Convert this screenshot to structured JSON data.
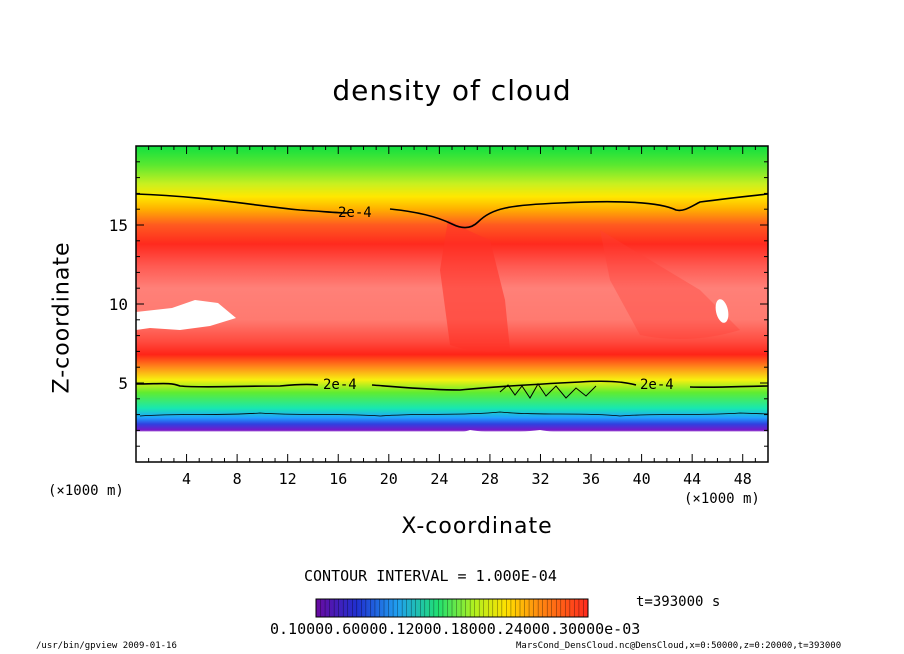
{
  "chart_data": {
    "type": "heatmap",
    "title": "density of cloud",
    "xlabel": "X-coordinate",
    "ylabel": "Z-coordinate",
    "x_unit": "(×1000 m)",
    "y_unit": "(×1000 m)",
    "xlim": [
      0,
      50
    ],
    "ylim": [
      0,
      20
    ],
    "x_ticks": [
      "4",
      "8",
      "12",
      "16",
      "20",
      "24",
      "28",
      "32",
      "36",
      "40",
      "44",
      "48"
    ],
    "y_ticks": [
      "5",
      "10",
      "15"
    ],
    "contour_level_label": "2e-4",
    "contour_interval": "CONTOUR INTERVAL = 1.000E-04",
    "time_label": "t=393000 s",
    "colorbar_label_text": "0.10000.60000.12000.18000.24000.30000e-03",
    "colors": {
      "high": "#ff3a2a",
      "peak": "#ff7a72",
      "mid": "#ffe000",
      "low": "#00e84a",
      "lowest": "#8a16c8"
    }
  },
  "footer": {
    "left": "/usr/bin/gpview  2009-01-16",
    "right": "MarsCond_DensCloud.nc@DensCloud,x=0:50000,z=0:20000,t=393000"
  }
}
